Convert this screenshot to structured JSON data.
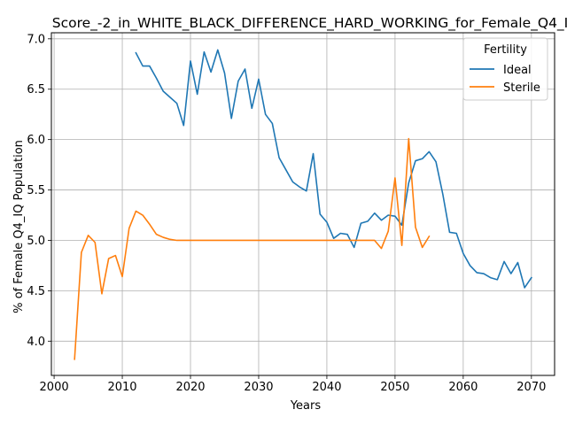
{
  "chart_data": {
    "type": "line",
    "title": "Score_-2_in_WHITE_BLACK_DIFFERENCE_HARD_WORKING_for_Female_Q4_I",
    "xlabel": "Years",
    "ylabel": "% of Female Q4_IQ Population",
    "xlim": [
      1999.6,
      2073.4
    ],
    "ylim": [
      3.66,
      7.06
    ],
    "xticks": [
      2000,
      2010,
      2020,
      2030,
      2040,
      2050,
      2060,
      2070
    ],
    "yticks": [
      4.0,
      4.5,
      5.0,
      5.5,
      6.0,
      6.5,
      7.0
    ],
    "grid": true,
    "legend": {
      "title": "Fertility",
      "position": "top-right"
    },
    "series": [
      {
        "name": "Ideal",
        "color": "#1f77b4",
        "x": [
          2012,
          2013,
          2014,
          2015,
          2016,
          2017,
          2018,
          2019,
          2020,
          2021,
          2022,
          2023,
          2024,
          2025,
          2026,
          2027,
          2028,
          2029,
          2030,
          2031,
          2032,
          2033,
          2034,
          2035,
          2036,
          2037,
          2038,
          2039,
          2040,
          2041,
          2042,
          2043,
          2044,
          2045,
          2046,
          2047,
          2048,
          2049,
          2050,
          2051,
          2052,
          2053,
          2054,
          2055,
          2056,
          2057,
          2058,
          2059,
          2060,
          2061,
          2062,
          2063,
          2064,
          2065,
          2066,
          2067,
          2068,
          2069,
          2070
        ],
        "y": [
          6.86,
          6.73,
          6.73,
          6.61,
          6.48,
          6.42,
          6.36,
          6.14,
          6.78,
          6.45,
          6.87,
          6.67,
          6.89,
          6.66,
          6.21,
          6.58,
          6.7,
          6.31,
          6.6,
          6.25,
          6.16,
          5.82,
          5.7,
          5.58,
          5.53,
          5.49,
          5.86,
          5.26,
          5.18,
          5.02,
          5.07,
          5.06,
          4.93,
          5.17,
          5.19,
          5.27,
          5.2,
          5.25,
          5.24,
          5.15,
          5.57,
          5.79,
          5.81,
          5.88,
          5.78,
          5.46,
          5.08,
          5.07,
          4.87,
          4.75,
          4.68,
          4.67,
          4.63,
          4.61,
          4.79,
          4.67,
          4.78,
          4.53,
          4.63
        ]
      },
      {
        "name": "Sterile",
        "color": "#ff7f0e",
        "x": [
          2003,
          2004,
          2005,
          2006,
          2007,
          2008,
          2009,
          2010,
          2011,
          2012,
          2013,
          2014,
          2015,
          2016,
          2017,
          2018,
          2019,
          2020,
          2021,
          2022,
          2023,
          2024,
          2025,
          2026,
          2027,
          2028,
          2029,
          2030,
          2031,
          2032,
          2033,
          2034,
          2035,
          2036,
          2037,
          2038,
          2039,
          2040,
          2041,
          2042,
          2043,
          2044,
          2045,
          2046,
          2047,
          2048,
          2049,
          2050,
          2051,
          2052,
          2053,
          2054,
          2055
        ],
        "y": [
          3.82,
          4.88,
          5.05,
          4.98,
          4.47,
          4.82,
          4.85,
          4.64,
          5.12,
          5.29,
          5.25,
          5.16,
          5.06,
          5.03,
          5.01,
          5.0,
          5.0,
          5.0,
          5.0,
          5.0,
          5.0,
          5.0,
          5.0,
          5.0,
          5.0,
          5.0,
          5.0,
          5.0,
          5.0,
          5.0,
          5.0,
          5.0,
          5.0,
          5.0,
          5.0,
          5.0,
          5.0,
          5.0,
          5.0,
          5.0,
          5.0,
          5.0,
          5.0,
          5.0,
          5.0,
          4.92,
          5.09,
          5.62,
          4.95,
          6.01,
          5.13,
          4.93,
          5.04
        ]
      }
    ]
  }
}
